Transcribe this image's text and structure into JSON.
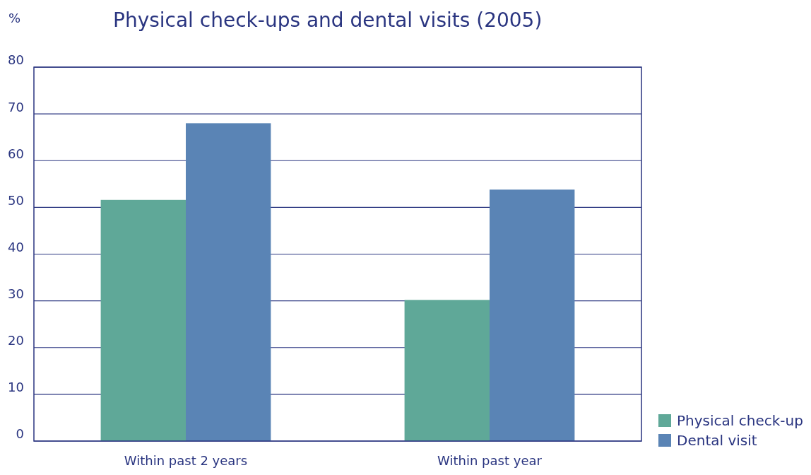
{
  "chart_data": {
    "type": "bar",
    "title": "Physical check-ups and dental visits (2005)",
    "ylabel": "%",
    "categories": [
      "Within past 2 years",
      "Within past year"
    ],
    "series": [
      {
        "name": "Physical check-up",
        "color": "#5fa898",
        "values": [
          51.6,
          30.2
        ]
      },
      {
        "name": "Dental visit",
        "color": "#5a84b5",
        "values": [
          68,
          53.8
        ]
      }
    ],
    "ylim": [
      0,
      80
    ],
    "yticks": [
      0,
      10,
      20,
      30,
      40,
      50,
      60,
      70,
      80
    ],
    "grid": "y",
    "legend": "bottom right"
  }
}
